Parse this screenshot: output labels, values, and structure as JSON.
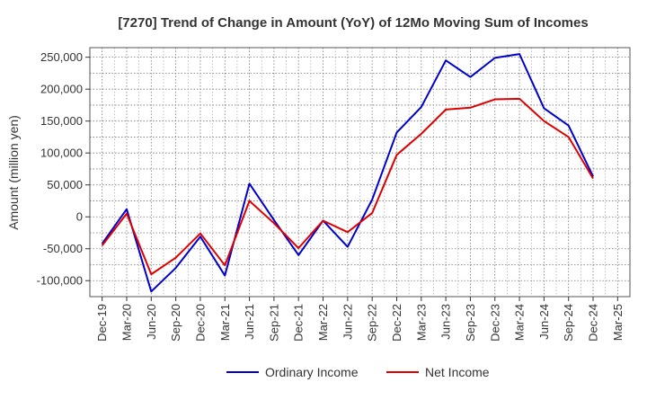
{
  "chart_data": {
    "type": "line",
    "title": "[7270]  Trend of Change in Amount (YoY) of 12Mo Moving Sum of Incomes",
    "xlabel": "",
    "ylabel": "Amount (million yen)",
    "ylim": [
      -125000,
      265000
    ],
    "yticks": [
      -100000,
      -50000,
      0,
      50000,
      100000,
      150000,
      200000,
      250000
    ],
    "ytick_labels": [
      "-100,000",
      "-50,000",
      "0",
      "50,000",
      "100,000",
      "150,000",
      "200,000",
      "250,000"
    ],
    "categories": [
      "Dec-19",
      "Mar-20",
      "Jun-20",
      "Sep-20",
      "Dec-20",
      "Mar-21",
      "Jun-21",
      "Sep-21",
      "Dec-21",
      "Mar-22",
      "Jun-22",
      "Sep-22",
      "Dec-22",
      "Mar-23",
      "Jun-23",
      "Sep-23",
      "Dec-23",
      "Mar-24",
      "Jun-24",
      "Sep-24",
      "Dec-24",
      "Mar-25"
    ],
    "grid": true,
    "legend_position": "bottom",
    "series": [
      {
        "name": "Ordinary Income",
        "color": "#0000cc",
        "values": [
          -42000,
          12000,
          -117000,
          -80000,
          -31000,
          -92000,
          52000,
          -5000,
          -60000,
          -6000,
          -47000,
          27000,
          132000,
          172000,
          245000,
          219000,
          249000,
          255000,
          170000,
          143000,
          63000,
          null
        ]
      },
      {
        "name": "Net Income",
        "color": "#dd0000",
        "values": [
          -45000,
          5000,
          -90000,
          -64000,
          -26000,
          -76000,
          25000,
          -10000,
          -49000,
          -6000,
          -24000,
          6000,
          97000,
          130000,
          168000,
          171000,
          184000,
          185000,
          150000,
          125000,
          60000,
          null
        ]
      }
    ]
  }
}
